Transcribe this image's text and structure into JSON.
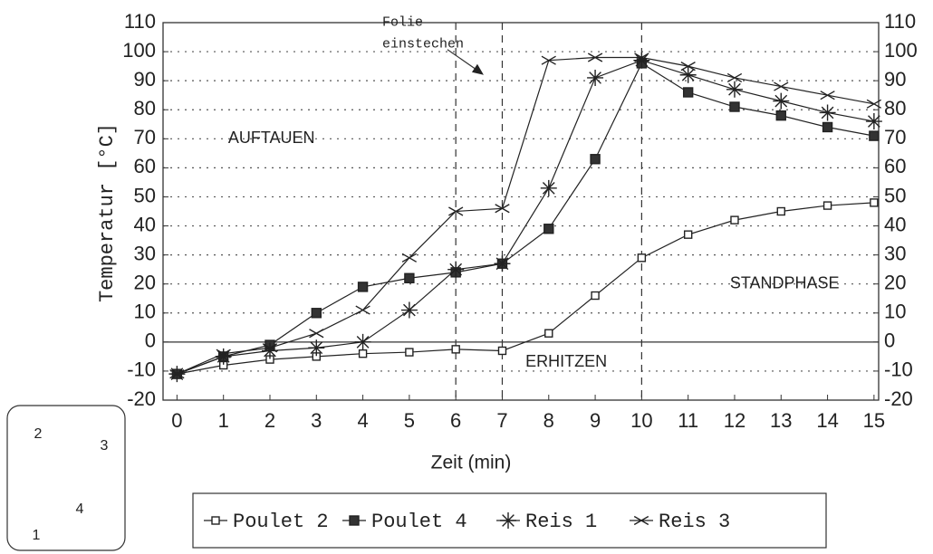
{
  "chart_data": {
    "type": "line",
    "y_label": "Temperatur [°C]",
    "x_label": "Zeit (min)",
    "x": [
      0,
      1,
      2,
      3,
      4,
      5,
      6,
      7,
      8,
      9,
      10,
      11,
      12,
      13,
      14,
      15
    ],
    "xlim": [
      -0.3,
      15.1
    ],
    "xticks": [
      0,
      1,
      2,
      3,
      4,
      5,
      6,
      7,
      8,
      9,
      10,
      11,
      12,
      13,
      14,
      15
    ],
    "ylim": [
      -20,
      110
    ],
    "yticks": [
      -20,
      -10,
      0,
      10,
      20,
      30,
      40,
      50,
      60,
      70,
      80,
      90,
      100,
      110
    ],
    "grid": true,
    "phase_lines": [
      6,
      7,
      10
    ],
    "annotations": [
      {
        "text": "AUFTAUEN",
        "x": 1.1,
        "y": 70
      },
      {
        "text": "ERHITZEN",
        "x": 7.5,
        "y": -7
      },
      {
        "text": "STANDPHASE",
        "x": 11.9,
        "y": 20
      }
    ],
    "arrow_note": {
      "lines": [
        "Folie",
        "einstechen"
      ],
      "x": 6.6,
      "y": 92
    },
    "inset_labels": [
      "2",
      "3",
      "4",
      "1"
    ],
    "series": [
      {
        "name": "Poulet 2",
        "color": "#222",
        "marker": "open-square",
        "values": [
          -11,
          -8,
          -6,
          -5,
          -4,
          -3.5,
          -2.5,
          -3,
          3,
          16,
          29,
          37,
          42,
          45,
          47,
          48
        ]
      },
      {
        "name": "Poulet 4",
        "color": "#222",
        "marker": "filled-square",
        "values": [
          -11,
          -5,
          -1,
          10,
          19,
          22,
          24,
          27,
          39,
          63,
          96,
          86,
          81,
          78,
          74,
          71
        ]
      },
      {
        "name": "Reis 1",
        "color": "#222",
        "marker": "asterisk",
        "values": [
          -11,
          -5,
          -3,
          -2,
          0,
          11,
          25,
          27,
          53,
          91,
          97,
          92,
          87,
          83,
          79,
          76
        ]
      },
      {
        "name": "Reis 3",
        "color": "#222",
        "marker": "cross",
        "values": [
          -11,
          -4,
          -2,
          3,
          11,
          29,
          45,
          46,
          97,
          98,
          98,
          95,
          91,
          88,
          85,
          82
        ]
      }
    ]
  }
}
